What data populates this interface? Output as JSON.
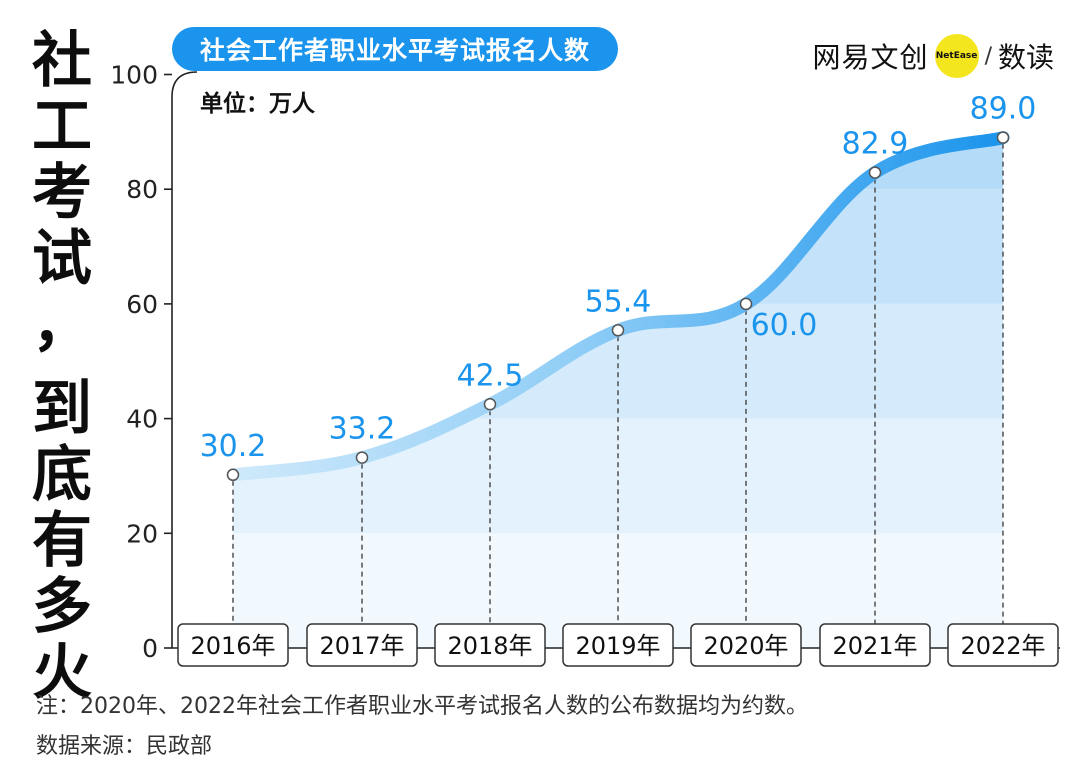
{
  "side_title": [
    "社",
    "工",
    "考",
    "试",
    "，",
    "到",
    "底",
    "有",
    "多",
    "火"
  ],
  "chart_title": "社会工作者职业水平考试报名人数",
  "unit": "单位：万人",
  "logo": {
    "brand": "网易文创",
    "badge": "NetEase",
    "slash": "/",
    "sub": "数读"
  },
  "colors": {
    "accent": "#1a94ec",
    "label": "#1a94ec",
    "badge": "#f3e61f"
  },
  "chart_data": {
    "type": "area",
    "title": "社会工作者职业水平考试报名人数",
    "ylabel": "单位：万人",
    "categories": [
      "2016年",
      "2017年",
      "2018年",
      "2019年",
      "2020年",
      "2021年",
      "2022年"
    ],
    "values": [
      30.2,
      33.2,
      42.5,
      55.4,
      60.0,
      82.9,
      89.0
    ],
    "value_labels": [
      "30.2",
      "33.2",
      "42.5",
      "55.4",
      "60.0",
      "82.9",
      "89.0"
    ],
    "yticks": [
      "0",
      "20",
      "40",
      "60",
      "80",
      "100"
    ],
    "ylim": [
      0,
      100
    ],
    "legend": "none"
  },
  "note": "注：2020年、2022年社会工作者职业水平考试报名人数的公布数据均为约数。",
  "source": "数据来源：民政部"
}
